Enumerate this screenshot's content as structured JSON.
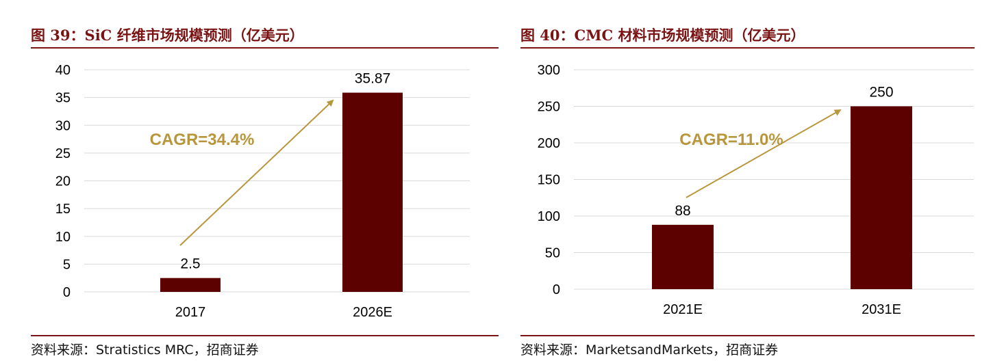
{
  "colors": {
    "bar": "#5c0000",
    "arrow": "#b8963c",
    "grid": "#d9d9d9",
    "title": "#7a1414"
  },
  "left": {
    "title": "图 39：SiC 纤维市场规模预测（亿美元）",
    "source": "资料来源：Stratistics MRC，招商证券",
    "annotation": "CAGR=34.4%"
  },
  "right": {
    "title": "图 40：CMC 材料市场规模预测（亿美元）",
    "source": "资料来源：MarketsandMarkets，招商证券",
    "annotation": "CAGR=11.0%"
  },
  "chart_data": [
    {
      "type": "bar",
      "title": "图 39：SiC 纤维市场规模预测（亿美元）",
      "categories": [
        "2017",
        "2026E"
      ],
      "values": [
        2.5,
        35.87
      ],
      "value_labels": [
        "2.5",
        "35.87"
      ],
      "ylim": [
        0,
        40
      ],
      "yticks": [
        0,
        5,
        10,
        15,
        20,
        25,
        30,
        35,
        40
      ],
      "grid": true,
      "annotation": "CAGR=34.4%"
    },
    {
      "type": "bar",
      "title": "图 40：CMC 材料市场规模预测（亿美元）",
      "categories": [
        "2021E",
        "2031E"
      ],
      "values": [
        88,
        250
      ],
      "value_labels": [
        "88",
        "250"
      ],
      "ylim": [
        0,
        300
      ],
      "yticks": [
        0,
        50,
        100,
        150,
        200,
        250,
        300
      ],
      "grid": true,
      "annotation": "CAGR=11.0%"
    }
  ]
}
